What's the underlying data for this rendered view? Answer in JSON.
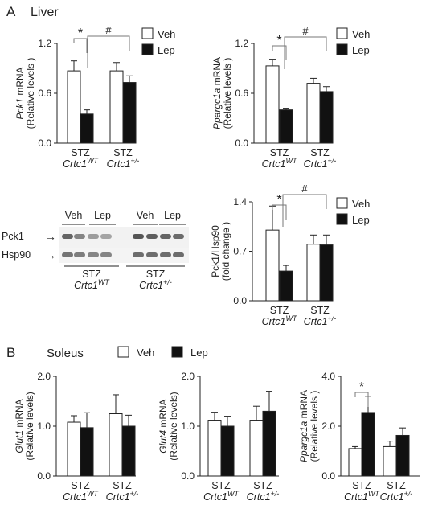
{
  "colors": {
    "veh": "#ffffff",
    "lep": "#111111",
    "axis": "#222222",
    "bracket": "#777777",
    "blot_band": "#555555"
  },
  "panels": {
    "A": {
      "letter": "A",
      "title": "Liver"
    },
    "B": {
      "letter": "B",
      "title": "Soleus"
    }
  },
  "legend": {
    "veh": "Veh",
    "lep": "Lep"
  },
  "group_labels": {
    "stz": "STZ",
    "wt": {
      "base": "Crtc1",
      "sup": "WT"
    },
    "het": {
      "base": "Crtc1",
      "sup": "+/-"
    }
  },
  "western_blot": {
    "lane_groups": [
      "Veh",
      "Lep",
      "Veh",
      "Lep"
    ],
    "bands": [
      "Pck1",
      "Hsp90"
    ],
    "arrow": "→",
    "group_captions": [
      {
        "stz": "STZ",
        "base": "Crtc1",
        "sup": "WT"
      },
      {
        "stz": "STZ",
        "base": "Crtc1",
        "sup": "+/-"
      }
    ],
    "lane_intensity": {
      "Pck1": [
        0.9,
        0.7,
        0.55,
        0.5,
        1.0,
        0.95,
        0.9,
        0.85
      ],
      "Hsp90": [
        0.8,
        0.75,
        0.7,
        0.7,
        0.85,
        0.85,
        0.85,
        0.85
      ]
    }
  },
  "chart_data": [
    {
      "id": "liver-pck1",
      "type": "bar",
      "ylabel_gene": "Pck1",
      "ylabel_unit": " mRNA",
      "ylabel2": "(Relative levels )",
      "ylim": [
        0,
        1.2
      ],
      "yticks": [
        "0.0",
        "0.6",
        "1.2"
      ],
      "ytick_values": [
        0,
        0.6,
        1.2
      ],
      "categories": [
        "STZ Crtc1 WT",
        "STZ Crtc1 +/-"
      ],
      "series": [
        {
          "name": "Veh",
          "values": [
            0.87,
            0.87
          ],
          "errors": [
            0.12,
            0.1
          ]
        },
        {
          "name": "Lep",
          "values": [
            0.35,
            0.73
          ],
          "errors": [
            0.05,
            0.08
          ]
        }
      ],
      "annotations": [
        {
          "text": "*",
          "type": "within-group"
        },
        {
          "text": "#",
          "type": "between-group"
        }
      ],
      "legend": true
    },
    {
      "id": "liver-ppargc1a",
      "type": "bar",
      "ylabel_gene": "Ppargc1a",
      "ylabel_unit": " mRNA",
      "ylabel2": "(Relative levels )",
      "ylim": [
        0,
        1.2
      ],
      "yticks": [
        "0.0",
        "0.6",
        "1.2"
      ],
      "ytick_values": [
        0,
        0.6,
        1.2
      ],
      "categories": [
        "STZ Crtc1 WT",
        "STZ Crtc1 +/-"
      ],
      "series": [
        {
          "name": "Veh",
          "values": [
            0.93,
            0.72
          ],
          "errors": [
            0.08,
            0.06
          ]
        },
        {
          "name": "Lep",
          "values": [
            0.4,
            0.62
          ],
          "errors": [
            0.02,
            0.06
          ]
        }
      ],
      "annotations": [
        {
          "text": "*",
          "type": "within-group"
        },
        {
          "text": "#",
          "type": "between-group"
        }
      ],
      "legend": true
    },
    {
      "id": "liver-pck1-hsp90",
      "type": "bar",
      "ylabel_gene": "",
      "ylabel_unit": "Pck1/Hsp90",
      "ylabel2": "(fold change )",
      "ylim": [
        0,
        1.4
      ],
      "yticks": [
        "0.0",
        "0.7",
        "1.4"
      ],
      "ytick_values": [
        0,
        0.7,
        1.4
      ],
      "categories": [
        "STZ Crtc1 WT",
        "STZ Crtc1 +/-"
      ],
      "series": [
        {
          "name": "Veh",
          "values": [
            1.0,
            0.8
          ],
          "errors": [
            0.34,
            0.13
          ]
        },
        {
          "name": "Lep",
          "values": [
            0.42,
            0.79
          ],
          "errors": [
            0.08,
            0.14
          ]
        }
      ],
      "annotations": [
        {
          "text": "*",
          "type": "within-group"
        },
        {
          "text": "#",
          "type": "between-group"
        }
      ],
      "legend": true
    },
    {
      "id": "soleus-glut1",
      "type": "bar",
      "ylabel_gene": "Glut1",
      "ylabel_unit": " mRNA",
      "ylabel2": "(Relative levels)",
      "ylim": [
        0,
        2.0
      ],
      "yticks": [
        "0.0",
        "1.0",
        "2.0"
      ],
      "ytick_values": [
        0,
        1.0,
        2.0
      ],
      "categories": [
        "STZ Crtc1 WT",
        "STZ Crtc1 +/-"
      ],
      "series": [
        {
          "name": "Veh",
          "values": [
            1.08,
            1.25
          ],
          "errors": [
            0.13,
            0.38
          ]
        },
        {
          "name": "Lep",
          "values": [
            0.97,
            1.0
          ],
          "errors": [
            0.3,
            0.22
          ]
        }
      ],
      "annotations": [],
      "legend": false
    },
    {
      "id": "soleus-glut4",
      "type": "bar",
      "ylabel_gene": "Glut4",
      "ylabel_unit": " mRNA",
      "ylabel2": "(Relative levels)",
      "ylim": [
        0,
        2.0
      ],
      "yticks": [
        "0.0",
        "1.0",
        "2.0"
      ],
      "ytick_values": [
        0,
        1.0,
        2.0
      ],
      "categories": [
        "STZ Crtc1 WT",
        "STZ Crtc1 +/-"
      ],
      "series": [
        {
          "name": "Veh",
          "values": [
            1.12,
            1.12
          ],
          "errors": [
            0.16,
            0.28
          ]
        },
        {
          "name": "Lep",
          "values": [
            1.0,
            1.3
          ],
          "errors": [
            0.2,
            0.4
          ]
        }
      ],
      "annotations": [],
      "legend": false
    },
    {
      "id": "soleus-ppargc1a",
      "type": "bar",
      "ylabel_gene": "Ppargc1a",
      "ylabel_unit": " mRNA",
      "ylabel2": "(Relative levels )",
      "ylim": [
        0,
        4.0
      ],
      "yticks": [
        "0.0",
        "2.0",
        "4.0"
      ],
      "ytick_values": [
        0,
        2.0,
        4.0
      ],
      "categories": [
        "STZ Crtc1 WT",
        "STZ Crtc1 +/-"
      ],
      "series": [
        {
          "name": "Veh",
          "values": [
            1.1,
            1.18
          ],
          "errors": [
            0.08,
            0.22
          ]
        },
        {
          "name": "Lep",
          "values": [
            2.55,
            1.63
          ],
          "errors": [
            0.65,
            0.3
          ]
        }
      ],
      "annotations": [
        {
          "text": "*",
          "type": "within-group"
        }
      ],
      "legend": false
    }
  ]
}
